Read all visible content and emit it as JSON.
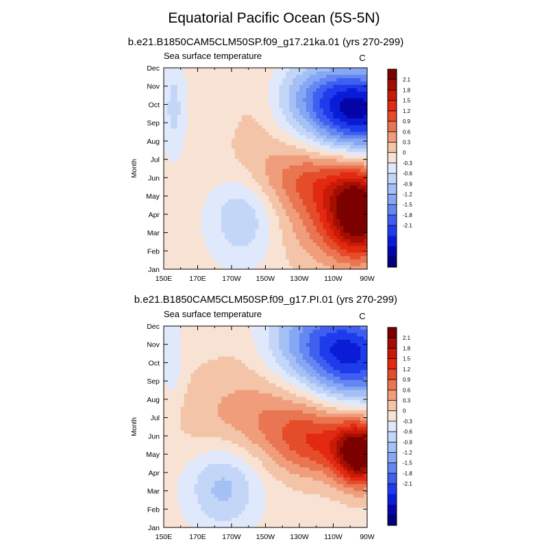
{
  "title": "Equatorial Pacific Ocean (5S-5N)",
  "colorbar_levels": [
    2.1,
    1.8,
    1.5,
    1.2,
    0.9,
    0.6,
    0.3,
    0,
    -0.3,
    -0.6,
    -0.9,
    -1.2,
    -1.5,
    -1.8,
    -2.1
  ],
  "colors": {
    "positive": [
      "#f8e2d3",
      "#f4c4a8",
      "#ef9d7a",
      "#ea7552",
      "#e54d2a",
      "#e32912",
      "#c91a08",
      "#a30e02",
      "#7d0000"
    ],
    "negative": [
      "#dfe9fb",
      "#c4d6f8",
      "#a5c0f5",
      "#86a7f3",
      "#6487f1",
      "#3f5ff0",
      "#1f3cec",
      "#0a1cd6",
      "#0404a8",
      "#00007a"
    ]
  },
  "chart_data": [
    {
      "type": "heatmap",
      "title": "b.e21.B1850CAM5CLM50SP.f09_g17.21ka.01 (yrs 270-299)",
      "left_label": "Sea surface temperature",
      "units": "C",
      "ylabel": "Month",
      "x_labels": [
        "150E",
        "170E",
        "170W",
        "150W",
        "130W",
        "110W",
        "90W"
      ],
      "y_labels": [
        "Jan",
        "Feb",
        "Mar",
        "Apr",
        "May",
        "Jun",
        "Jul",
        "Aug",
        "Sep",
        "Oct",
        "Nov",
        "Dec"
      ],
      "longitude_range": [
        150,
        270
      ],
      "colorbar_range": [
        -2.1,
        2.1
      ],
      "anomalies": [
        {
          "lon": 266,
          "month": 3.0,
          "amp": 2.4,
          "sx": 12,
          "sy": 1.6
        },
        {
          "lon": 246,
          "month": 3.0,
          "amp": 0.9,
          "sx": 18,
          "sy": 2.0
        },
        {
          "lon": 240,
          "month": 5.0,
          "amp": 0.6,
          "sx": 25,
          "sy": 1.2
        },
        {
          "lon": 215,
          "month": 5.5,
          "amp": 0.25,
          "sx": 30,
          "sy": 1.5
        },
        {
          "lon": 196,
          "month": 3.0,
          "amp": -0.75,
          "sx": 14,
          "sy": 1.8
        },
        {
          "lon": 265,
          "month": 8.5,
          "amp": -2.3,
          "sx": 22,
          "sy": 1.6
        },
        {
          "lon": 245,
          "month": 9.7,
          "amp": -0.8,
          "sx": 25,
          "sy": 1.3
        },
        {
          "lon": 156,
          "month": 8.8,
          "amp": -0.55,
          "sx": 5,
          "sy": 2.0
        },
        {
          "lon": 205,
          "month": 9.5,
          "amp": 0.3,
          "sx": 12,
          "sy": 2.5
        }
      ]
    },
    {
      "type": "heatmap",
      "title": "b.e21.B1850CAM5CLM50SP.f09_g17.PI.01 (yrs 270-299)",
      "left_label": "Sea surface temperature",
      "units": "C",
      "ylabel": "Month",
      "x_labels": [
        "150E",
        "170E",
        "170W",
        "150W",
        "130W",
        "110W",
        "90W"
      ],
      "y_labels": [
        "Jan",
        "Feb",
        "Mar",
        "Apr",
        "May",
        "Jun",
        "Jul",
        "Aug",
        "Sep",
        "Oct",
        "Nov",
        "Dec"
      ],
      "longitude_range": [
        150,
        270
      ],
      "colorbar_range": [
        -2.1,
        2.1
      ],
      "anomalies": [
        {
          "lon": 266,
          "month": 4.0,
          "amp": 2.4,
          "sx": 10,
          "sy": 1.2
        },
        {
          "lon": 242,
          "month": 4.5,
          "amp": 1.1,
          "sx": 20,
          "sy": 1.3
        },
        {
          "lon": 225,
          "month": 6.0,
          "amp": 0.5,
          "sx": 30,
          "sy": 1.3
        },
        {
          "lon": 190,
          "month": 6.5,
          "amp": 0.3,
          "sx": 35,
          "sy": 2.0
        },
        {
          "lon": 185,
          "month": 2.2,
          "amp": -0.85,
          "sx": 15,
          "sy": 1.6
        },
        {
          "lon": 262,
          "month": 9.2,
          "amp": -2.0,
          "sx": 22,
          "sy": 1.8
        },
        {
          "lon": 235,
          "month": 10.5,
          "amp": -0.9,
          "sx": 25,
          "sy": 1.5
        },
        {
          "lon": 155,
          "month": 9.0,
          "amp": -0.45,
          "sx": 5,
          "sy": 2.0
        },
        {
          "lon": 200,
          "month": 10.5,
          "amp": 0.25,
          "sx": 15,
          "sy": 2.0
        }
      ]
    }
  ]
}
